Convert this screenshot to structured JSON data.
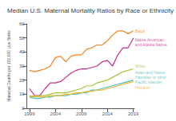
{
  "chart_data": {
    "type": "line",
    "title": "Median U.S. Maternal Mortality Ratios by Race or Ethnicity",
    "ylabel": "Maternal Deaths per 100,000 Live Births",
    "x": [
      1999,
      2000,
      2001,
      2002,
      2003,
      2004,
      2005,
      2006,
      2007,
      2008,
      2009,
      2010,
      2011,
      2012,
      2013,
      2014,
      2015,
      2016,
      2017,
      2018,
      2019
    ],
    "series": [
      {
        "name": "Black",
        "color": "#f58220",
        "values": [
          27,
          26,
          27,
          28,
          30,
          36,
          37,
          33,
          37,
          38,
          38,
          42,
          43,
          45,
          45,
          48,
          52,
          55,
          55,
          53,
          55
        ]
      },
      {
        "name": "Native American\nand Alaska Native",
        "color": "#cc2c8e",
        "values": [
          14,
          9,
          9,
          14,
          18,
          18,
          19,
          22,
          25,
          27,
          28,
          28,
          29,
          30,
          33,
          34,
          30,
          38,
          43,
          43,
          50
        ]
      },
      {
        "name": "White",
        "color": "#a8c43a",
        "values": [
          9,
          8,
          9,
          9,
          10,
          11,
          11,
          11,
          12,
          13,
          14,
          16,
          16,
          18,
          19,
          20,
          22,
          24,
          26,
          27,
          28
        ]
      },
      {
        "name": "Asian and Native\nHawaiian or other\nPacific Islander",
        "color": "#4bbfbf",
        "values": [
          8,
          7,
          7,
          8,
          8,
          9,
          9,
          9,
          10,
          10,
          11,
          11,
          13,
          13,
          14,
          15,
          16,
          17,
          18,
          19,
          20
        ]
      },
      {
        "name": "Hispanic",
        "color": "#f0b429",
        "values": [
          8,
          9,
          8,
          8,
          9,
          9,
          9,
          10,
          10,
          11,
          11,
          12,
          12,
          13,
          13,
          14,
          15,
          16,
          17,
          18,
          19
        ]
      }
    ],
    "xlim": [
      1998.5,
      2019.2
    ],
    "xticks": [
      1999,
      2004,
      2009,
      2014,
      2019
    ],
    "ylim": [
      0,
      60
    ],
    "yticks": [
      0,
      10,
      20,
      30,
      40,
      50,
      60
    ],
    "grid": false,
    "annotations": [
      {
        "text": "Black",
        "color": "#f58220",
        "x": 2019.3,
        "y": 55
      },
      {
        "text": "Native American\nand Alaska Native",
        "color": "#cc2c8e",
        "x": 2019.3,
        "y": 47
      },
      {
        "text": "White",
        "color": "#a8c43a",
        "x": 2019.3,
        "y": 30
      },
      {
        "text": "Asian and Native\nHawaiian or other\nPacific Islander",
        "color": "#4bbfbf",
        "x": 2019.3,
        "y": 22
      },
      {
        "text": "Hispanic",
        "color": "#f0b429",
        "x": 2019.3,
        "y": 15
      }
    ]
  }
}
